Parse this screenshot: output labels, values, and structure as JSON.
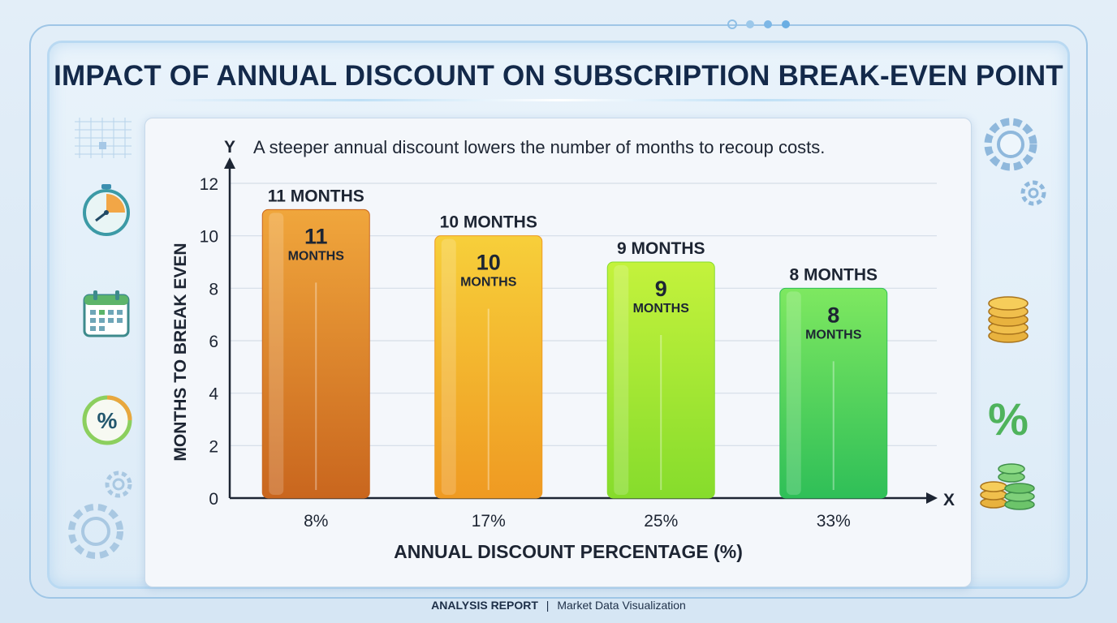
{
  "title": "IMPACT OF ANNUAL DISCOUNT ON SUBSCRIPTION BREAK-EVEN POINT",
  "footer": {
    "label": "ANALYSIS REPORT",
    "separator": "|",
    "text": "Market Data Visualization"
  },
  "chart_data": {
    "type": "bar",
    "subtitle": "A steeper annual discount lowers the number of months to recoup costs.",
    "xlabel": "ANNUAL DISCOUNT PERCENTAGE (%)",
    "ylabel": "MONTHS TO BREAK EVEN",
    "x_axis_letter": "X",
    "y_axis_letter": "Y",
    "categories": [
      "8%",
      "17%",
      "25%",
      "33%"
    ],
    "values": [
      11,
      10,
      9,
      8
    ],
    "top_labels": [
      "11 MONTHS",
      "10 MONTHS",
      "9 MONTHS",
      "8 MONTHS"
    ],
    "inner_labels": [
      {
        "number": "11",
        "unit": "MONTHS"
      },
      {
        "number": "10",
        "unit": "MONTHS"
      },
      {
        "number": "9",
        "unit": "MONTHS"
      },
      {
        "number": "8",
        "unit": "MONTHS"
      }
    ],
    "ylim": [
      0,
      12
    ],
    "yticks": [
      0,
      2,
      4,
      6,
      8,
      10,
      12
    ],
    "grid": true,
    "bar_colors": [
      {
        "top": "#f0a63c",
        "bottom": "#c9661e"
      },
      {
        "top": "#f7cf3a",
        "bottom": "#ef9a22"
      },
      {
        "top": "#c4f23c",
        "bottom": "#86dc2c"
      },
      {
        "top": "#7ee860",
        "bottom": "#2fbf58"
      }
    ]
  }
}
